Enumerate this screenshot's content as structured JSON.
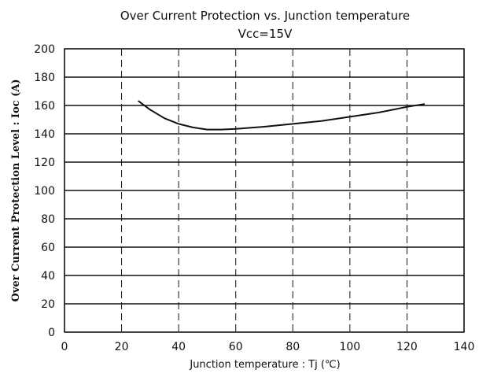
{
  "chart_data": {
    "type": "line",
    "title": "Over Current Protection vs. Junction temperature",
    "subtitle": "Vcc=15V",
    "xlabel": "Junction temperature : Tj (℃)",
    "ylabel": "Over Current Protection Level : Ioc (A)",
    "xlim": [
      0,
      140
    ],
    "ylim": [
      0,
      200
    ],
    "xticks": [
      "0",
      "20",
      "40",
      "60",
      "80",
      "100",
      "120",
      "140"
    ],
    "yticks": [
      "0",
      "20",
      "40",
      "60",
      "80",
      "100",
      "120",
      "140",
      "160",
      "180",
      "200"
    ],
    "grid": true,
    "series": [
      {
        "x": [
          26,
          30,
          35,
          40,
          45,
          50,
          55,
          60,
          70,
          80,
          90,
          100,
          110,
          120,
          126
        ],
        "y": [
          163,
          157,
          151,
          147,
          144.5,
          143,
          143,
          143.5,
          145,
          147,
          149,
          152,
          155,
          159,
          161
        ]
      }
    ]
  },
  "colors": {
    "line": "#111111",
    "grid": "#111111",
    "background": "#ffffff"
  }
}
